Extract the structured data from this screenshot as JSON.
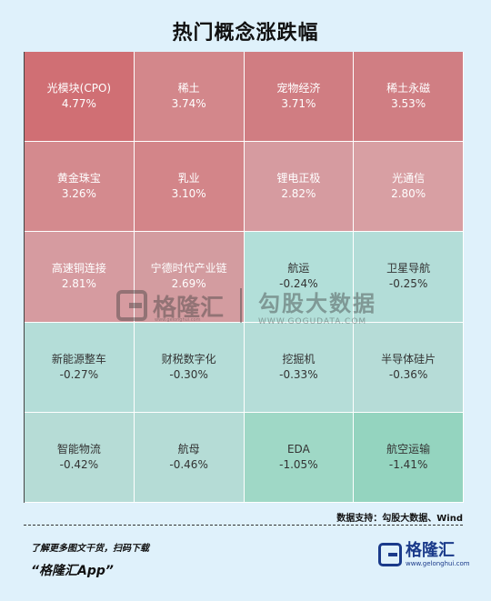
{
  "title": "热门概念涨跌幅",
  "chart_data": {
    "type": "heatmap",
    "title": "热门概念涨跌幅",
    "cells": [
      {
        "name": "光模块(CPO)",
        "value": "4.77%",
        "change": 4.77
      },
      {
        "name": "稀土",
        "value": "3.74%",
        "change": 3.74
      },
      {
        "name": "宠物经济",
        "value": "3.71%",
        "change": 3.71
      },
      {
        "name": "稀土永磁",
        "value": "3.53%",
        "change": 3.53
      },
      {
        "name": "黄金珠宝",
        "value": "3.26%",
        "change": 3.26
      },
      {
        "name": "乳业",
        "value": "3.10%",
        "change": 3.1
      },
      {
        "name": "锂电正极",
        "value": "2.82%",
        "change": 2.82
      },
      {
        "name": "光通信",
        "value": "2.80%",
        "change": 2.8
      },
      {
        "name": "高速铜连接",
        "value": "2.81%",
        "change": 2.81
      },
      {
        "name": "宁德时代产业链",
        "value": "2.69%",
        "change": 2.69
      },
      {
        "name": "航运",
        "value": "-0.24%",
        "change": -0.24
      },
      {
        "name": "卫星导航",
        "value": "-0.25%",
        "change": -0.25
      },
      {
        "name": "新能源整车",
        "value": "-0.27%",
        "change": -0.27
      },
      {
        "name": "财税数字化",
        "value": "-0.30%",
        "change": -0.3
      },
      {
        "name": "挖掘机",
        "value": "-0.33%",
        "change": -0.33
      },
      {
        "name": "半导体硅片",
        "value": "-0.36%",
        "change": -0.36
      },
      {
        "name": "智能物流",
        "value": "-0.42%",
        "change": -0.42
      },
      {
        "name": "航母",
        "value": "-0.46%",
        "change": -0.46
      },
      {
        "name": "EDA",
        "value": "-1.05%",
        "change": -1.05
      },
      {
        "name": "航空运输",
        "value": "-1.41%",
        "change": -1.41
      }
    ]
  },
  "cell_colors": [
    "#d06f74",
    "#d3878b",
    "#d07d82",
    "#d07e83",
    "#d48a8e",
    "#d38589",
    "#d69ba0",
    "#d89fa3",
    "#d69ba0",
    "#d39ca0",
    "#b2dfd9",
    "#b3ddd8",
    "#b4ddd8",
    "#b5ddd8",
    "#b5ddd8",
    "#b6dcd7",
    "#b6dcd6",
    "#b5dcd6",
    "#9fd8c6",
    "#94d4bf"
  ],
  "watermark": {
    "name": "格隆汇",
    "name2": "勾股大数据",
    "url": "WWW.GOGUDATA.COM",
    "url_small": "www.gelonghui.com"
  },
  "source": "数据支持：勾股大数据、Wind",
  "footer": {
    "line1": "了解更多图文干货，扫码下载",
    "line2": "“格隆汇App”",
    "brand_name": "格隆汇",
    "brand_url": "www.gelonghui.com"
  }
}
